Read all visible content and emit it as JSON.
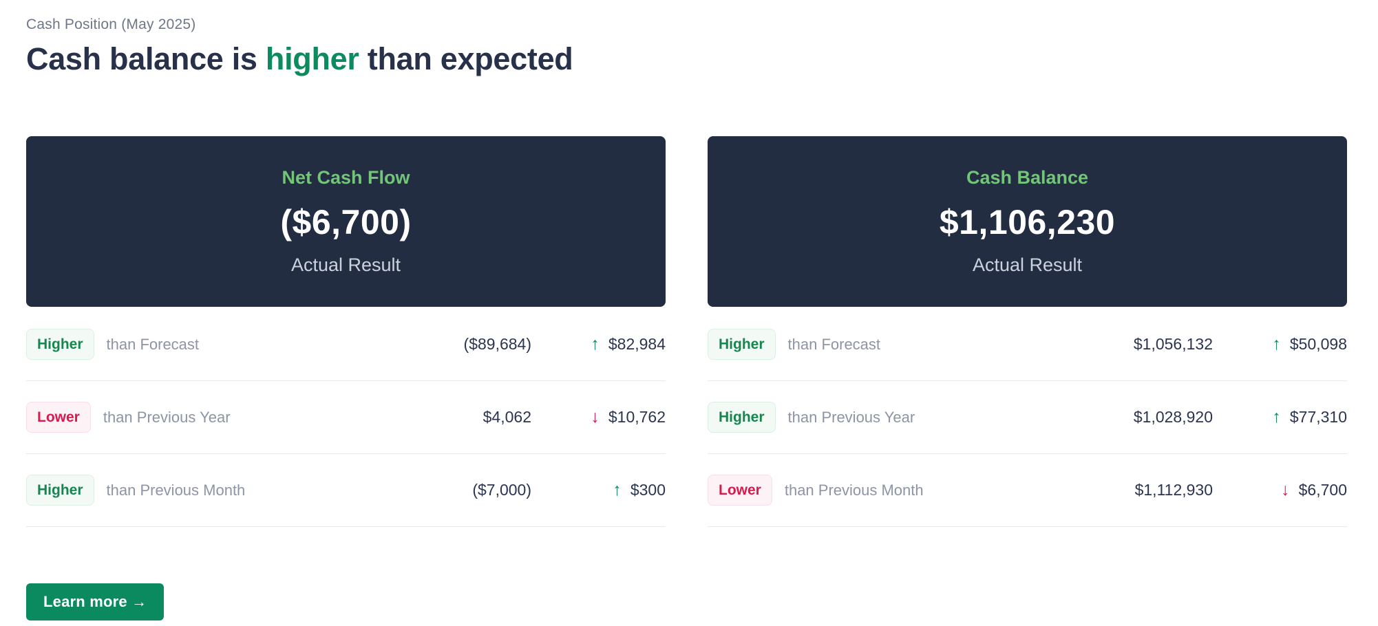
{
  "page": {
    "eyebrow": "Cash Position (May 2025)",
    "headline_prefix": "Cash balance is ",
    "headline_highlight": "higher",
    "headline_suffix": " than expected"
  },
  "icons": {
    "up_arrow": "↑",
    "down_arrow": "↓"
  },
  "colors": {
    "card_background": "#222d42",
    "card_title_green": "#73c577",
    "accent_green": "#0e8a5f",
    "badge_green_text": "#17854f",
    "badge_red_text": "#d81b4e",
    "button_green": "#0c8a5f"
  },
  "columns": [
    {
      "card": {
        "title": "Net Cash Flow",
        "value": "($6,700)",
        "subtitle": "Actual Result"
      },
      "rows": [
        {
          "badge": "Higher",
          "label": "than Forecast",
          "comparison_value": "($89,684)",
          "delta": "$82,984"
        },
        {
          "badge": "Lower",
          "label": "than Previous Year",
          "comparison_value": "$4,062",
          "delta": "$10,762"
        },
        {
          "badge": "Higher",
          "label": "than Previous Month",
          "comparison_value": "($7,000)",
          "delta": "$300"
        }
      ]
    },
    {
      "card": {
        "title": "Cash Balance",
        "value": "$1,106,230",
        "subtitle": "Actual Result"
      },
      "rows": [
        {
          "badge": "Higher",
          "label": "than Forecast",
          "comparison_value": "$1,056,132",
          "delta": "$50,098"
        },
        {
          "badge": "Higher",
          "label": "than Previous Year",
          "comparison_value": "$1,028,920",
          "delta": "$77,310"
        },
        {
          "badge": "Lower",
          "label": "than Previous Month",
          "comparison_value": "$1,112,930",
          "delta": "$6,700"
        }
      ]
    }
  ],
  "button": {
    "label": "Learn more →"
  }
}
